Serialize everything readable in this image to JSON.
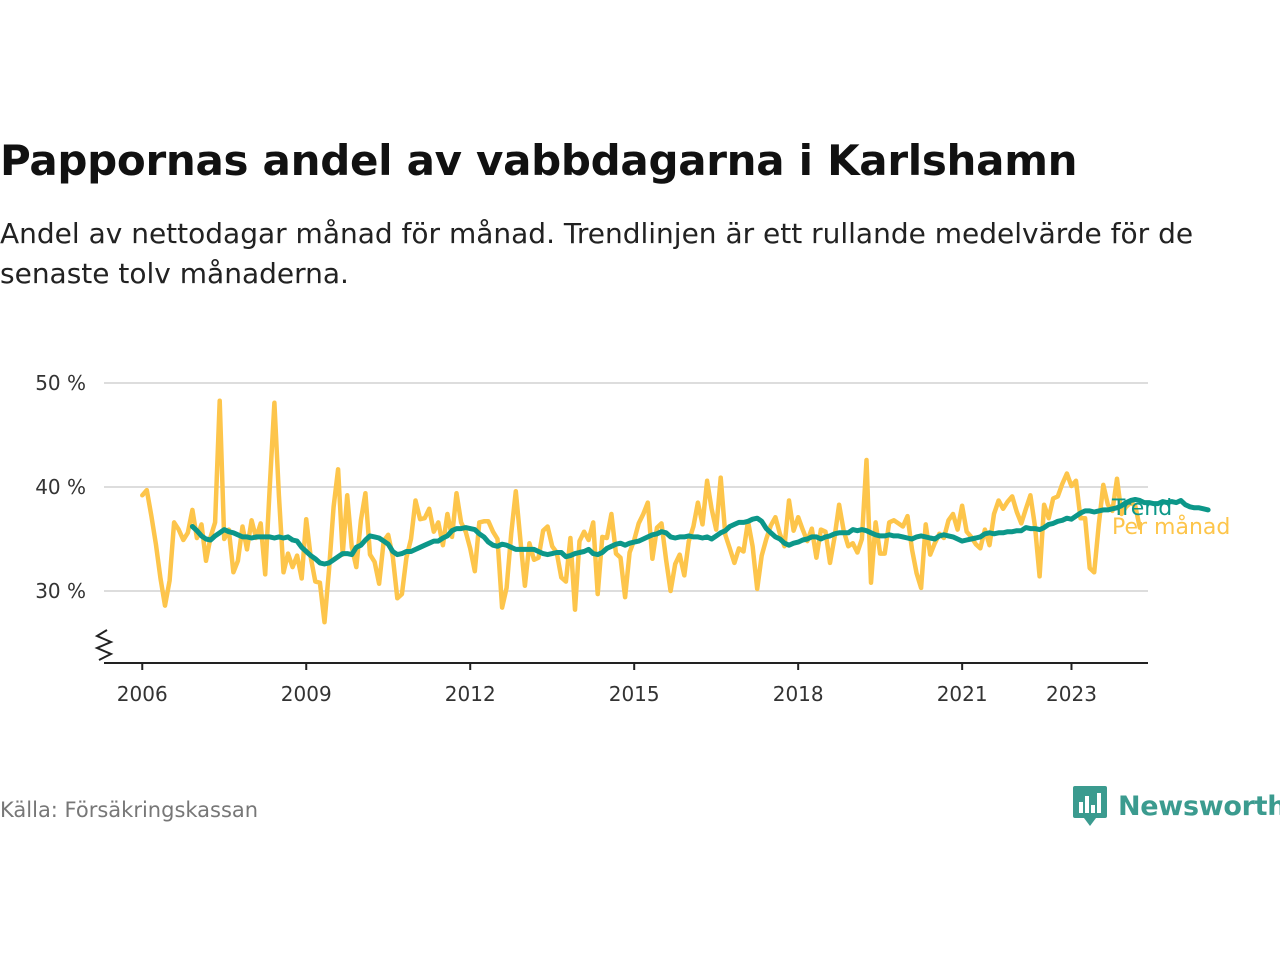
{
  "header": {
    "title": "Pappornas andel av vabbdagarna i Karlshamn",
    "subtitle": "Andel av nettodagar månad för månad. Trendlinjen är ett rullande medelvärde för de senaste tolv månaderna."
  },
  "footer": {
    "source": "Källa: Försäkringskassan",
    "brand": "Newsworthy"
  },
  "colors": {
    "monthly": "#fdc54b",
    "trend": "#0c9789",
    "grid": "#dddddd",
    "axis": "#222222",
    "brand": "#3b9b8f"
  },
  "chart_data": {
    "type": "line",
    "title": "Pappornas andel av vabbdagarna i Karlshamn",
    "ylabel": "",
    "xlabel": "",
    "ylim": [
      24,
      50
    ],
    "y_ticks": [
      30,
      40,
      50
    ],
    "y_tick_labels": [
      "30 %",
      "40 %",
      "50 %"
    ],
    "axis_break": true,
    "x_range": [
      2005.3,
      2024.4
    ],
    "x_ticks": [
      2006,
      2009,
      2012,
      2015,
      2018,
      2021,
      2023
    ],
    "x_tick_labels": [
      "2006",
      "2009",
      "2012",
      "2015",
      "2018",
      "2021",
      "2023"
    ],
    "grid": true,
    "series": [
      {
        "name": "Per månad",
        "color": "#fdc54b",
        "x_start": 2006.0,
        "x_step": 0.08333,
        "values": [
          39.2,
          39.7,
          37.2,
          34.5,
          31.2,
          28.6,
          31.0,
          36.6,
          35.9,
          34.9,
          35.6,
          37.8,
          35.1,
          36.4,
          32.9,
          35.2,
          36.6,
          48.3,
          35.0,
          35.9,
          31.8,
          32.9,
          36.2,
          34.0,
          36.8,
          35.1,
          36.5,
          31.6,
          40.1,
          48.1,
          39.2,
          31.8,
          33.6,
          32.3,
          33.4,
          31.2,
          36.9,
          33.2,
          30.9,
          30.8,
          27.0,
          32.0,
          38.1,
          41.7,
          33.5,
          39.2,
          34.2,
          32.3,
          36.8,
          39.4,
          33.5,
          32.8,
          30.7,
          34.8,
          35.4,
          33.3,
          29.3,
          29.7,
          33.2,
          35.0,
          38.7,
          36.9,
          37.0,
          37.9,
          35.7,
          36.6,
          34.4,
          37.4,
          35.2,
          39.4,
          36.6,
          35.7,
          34.1,
          31.9,
          36.6,
          36.7,
          36.7,
          35.7,
          35.0,
          28.4,
          30.3,
          35.5,
          39.6,
          35.0,
          30.5,
          34.6,
          33.0,
          33.2,
          35.8,
          36.2,
          34.3,
          33.7,
          31.3,
          30.9,
          35.1,
          28.2,
          34.8,
          35.7,
          34.9,
          36.6,
          29.7,
          35.2,
          35.1,
          37.4,
          33.6,
          33.2,
          29.4,
          33.7,
          34.9,
          36.5,
          37.4,
          38.5,
          33.1,
          36.1,
          36.5,
          33.0,
          30.0,
          32.6,
          33.5,
          31.5,
          34.8,
          36.2,
          38.5,
          36.4,
          40.6,
          37.9,
          35.9,
          40.9,
          35.4,
          34.1,
          32.7,
          34.1,
          33.8,
          36.7,
          34.3,
          30.2,
          33.4,
          35.0,
          36.3,
          37.1,
          35.5,
          34.3,
          38.7,
          35.8,
          37.1,
          35.9,
          34.8,
          36.0,
          33.2,
          35.9,
          35.7,
          32.7,
          35.2,
          38.3,
          35.8,
          34.3,
          34.6,
          33.7,
          35.0,
          42.6,
          30.8,
          36.6,
          33.6,
          33.6,
          36.6,
          36.8,
          36.5,
          36.2,
          37.2,
          34.0,
          31.7,
          30.3,
          36.4,
          33.5,
          34.6,
          35.5,
          35.1,
          36.8,
          37.4,
          35.9,
          38.2,
          35.7,
          35.2,
          34.5,
          34.1,
          35.9,
          34.4,
          37.4,
          38.7,
          37.9,
          38.6,
          39.1,
          37.6,
          36.5,
          37.9,
          39.2,
          36.2,
          31.4,
          38.3,
          37.0,
          38.9,
          39.1,
          40.3,
          41.3,
          40.1,
          40.6,
          37.0,
          37.0,
          32.2,
          31.8,
          36.4,
          40.2,
          38.3,
          37.7,
          40.8,
          37.4,
          38.1,
          38.5,
          38.2,
          36.1
        ]
      },
      {
        "name": "Trend",
        "color": "#0c9789",
        "x_start": 2006.9167,
        "x_step": 0.08333,
        "values": [
          36.2,
          35.8,
          35.3,
          35.0,
          34.9,
          35.3,
          35.6,
          35.9,
          35.7,
          35.6,
          35.4,
          35.2,
          35.2,
          35.1,
          35.2,
          35.2,
          35.2,
          35.2,
          35.1,
          35.2,
          35.1,
          35.2,
          34.9,
          34.8,
          34.2,
          33.8,
          33.4,
          33.1,
          32.7,
          32.6,
          32.7,
          33.0,
          33.3,
          33.6,
          33.6,
          33.5,
          34.2,
          34.4,
          34.9,
          35.3,
          35.2,
          35.1,
          34.8,
          34.5,
          33.8,
          33.5,
          33.6,
          33.8,
          33.8,
          34.0,
          34.2,
          34.4,
          34.6,
          34.8,
          34.8,
          35.1,
          35.3,
          35.8,
          36.0,
          36.0,
          36.1,
          36.0,
          35.9,
          35.5,
          35.2,
          34.7,
          34.4,
          34.3,
          34.5,
          34.4,
          34.2,
          34.0,
          34.0,
          34.0,
          34.0,
          34.0,
          33.8,
          33.6,
          33.5,
          33.6,
          33.7,
          33.7,
          33.3,
          33.4,
          33.6,
          33.7,
          33.8,
          34.0,
          33.6,
          33.5,
          33.7,
          34.1,
          34.3,
          34.5,
          34.6,
          34.4,
          34.6,
          34.7,
          34.8,
          35.0,
          35.2,
          35.4,
          35.5,
          35.7,
          35.6,
          35.2,
          35.1,
          35.2,
          35.2,
          35.3,
          35.2,
          35.2,
          35.1,
          35.2,
          35.0,
          35.3,
          35.6,
          35.8,
          36.2,
          36.4,
          36.6,
          36.6,
          36.7,
          36.9,
          37.0,
          36.7,
          36.0,
          35.6,
          35.2,
          35.0,
          34.6,
          34.4,
          34.6,
          34.7,
          34.9,
          35.0,
          35.2,
          35.2,
          35.0,
          35.2,
          35.3,
          35.5,
          35.6,
          35.6,
          35.6,
          35.9,
          35.8,
          35.9,
          35.8,
          35.6,
          35.4,
          35.3,
          35.3,
          35.4,
          35.3,
          35.3,
          35.2,
          35.1,
          35.0,
          35.2,
          35.3,
          35.2,
          35.1,
          35.0,
          35.3,
          35.4,
          35.3,
          35.2,
          35.0,
          34.8,
          34.9,
          35.0,
          35.1,
          35.2,
          35.5,
          35.6,
          35.5,
          35.6,
          35.6,
          35.7,
          35.7,
          35.8,
          35.8,
          36.1,
          36.0,
          36.0,
          35.9,
          36.1,
          36.4,
          36.5,
          36.7,
          36.8,
          37.0,
          36.9,
          37.2,
          37.5,
          37.7,
          37.7,
          37.6,
          37.7,
          37.8,
          37.8,
          37.9,
          38.0,
          38.2,
          38.5,
          38.7,
          38.8,
          38.7,
          38.5,
          38.5,
          38.4,
          38.4,
          38.6,
          38.5,
          38.6,
          38.5,
          38.7,
          38.3,
          38.1,
          38.0,
          38.0,
          37.9,
          37.8
        ]
      }
    ]
  }
}
